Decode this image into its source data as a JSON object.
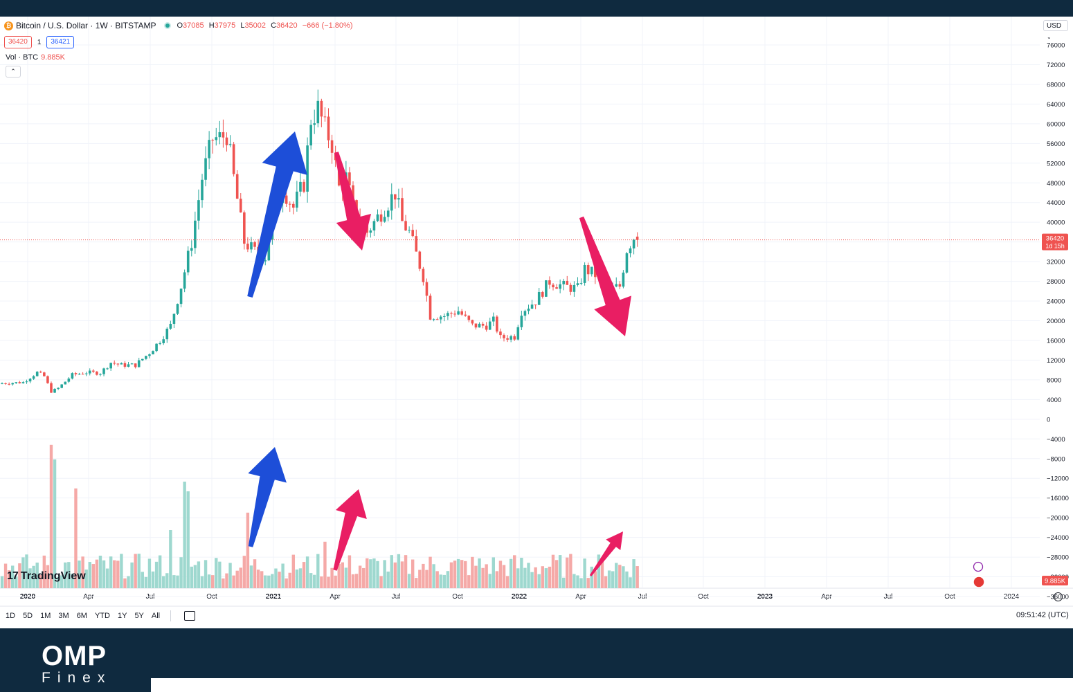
{
  "header": {
    "symbol_title": "Bitcoin / U.S. Dollar · 1W · BITSTAMP",
    "ohlc": {
      "o_label": "O",
      "o": "37085",
      "h_label": "H",
      "h": "37975",
      "l_label": "L",
      "l": "35002",
      "c_label": "C",
      "c": "36420",
      "change": "−666 (−1.80%)"
    },
    "sell_price": "36420",
    "spread": "1",
    "buy_price": "36421",
    "vol_label": "Vol · BTC",
    "vol_value": "9.885K",
    "collapse_icon": "chevron-up-icon",
    "currency": "USD"
  },
  "footer": {
    "ranges": [
      "1D",
      "5D",
      "1M",
      "3M",
      "6M",
      "YTD",
      "1Y",
      "5Y",
      "All"
    ],
    "clock": "09:51:42 (UTC)",
    "tradingview_logo": "TradingView"
  },
  "brand": {
    "name_top": "OMP",
    "name_bottom": "Finex"
  },
  "colors": {
    "up": "#26a69a",
    "down": "#ef5350",
    "up_vol": "#9ed8cf",
    "down_vol": "#f5a9a7",
    "arrow_blue": "#1d4ed8",
    "arrow_pink": "#e91e63",
    "price_badge": "#ef5350"
  },
  "chart_data": {
    "type": "candlestick",
    "title": "Bitcoin / U.S. Dollar · 1W · BITSTAMP",
    "y_axis_ticks": [
      76000,
      72000,
      68000,
      64000,
      60000,
      56000,
      52000,
      48000,
      44000,
      40000,
      36000,
      32000,
      28000,
      24000,
      20000,
      16000,
      12000,
      8000,
      4000,
      0,
      -4000,
      -8000,
      -12000,
      -16000,
      -20000,
      -24000,
      -28000,
      -32000,
      -36000
    ],
    "ylim": [
      -36000,
      76000
    ],
    "x_axis_labels": [
      "2020",
      "Apr",
      "Jul",
      "Oct",
      "2021",
      "Apr",
      "Jul",
      "Oct",
      "2022",
      "Apr",
      "Jul",
      "Oct",
      "2023",
      "Apr",
      "Jul",
      "Oct",
      "2024"
    ],
    "current_price_label": "36420",
    "current_price_countdown": "1d 15h",
    "current_volume_label": "9.885K",
    "price_anchors": [
      [
        0,
        7300
      ],
      [
        6,
        7500
      ],
      [
        10,
        9500
      ],
      [
        12,
        8700
      ],
      [
        14,
        5600
      ],
      [
        16,
        6300
      ],
      [
        20,
        9000
      ],
      [
        24,
        9500
      ],
      [
        28,
        9400
      ],
      [
        31,
        11500
      ],
      [
        34,
        11000
      ],
      [
        38,
        11000
      ],
      [
        42,
        13500
      ],
      [
        45,
        16000
      ],
      [
        48,
        19000
      ],
      [
        51,
        27000
      ],
      [
        54,
        36000
      ],
      [
        57,
        49000
      ],
      [
        60,
        57000
      ],
      [
        62,
        57000
      ],
      [
        64,
        58000
      ],
      [
        66,
        49000
      ],
      [
        69,
        36000
      ],
      [
        72,
        34000
      ],
      [
        75,
        33000
      ],
      [
        77,
        41000
      ],
      [
        80,
        47000
      ],
      [
        83,
        43000
      ],
      [
        86,
        48000
      ],
      [
        88,
        61000
      ],
      [
        90,
        63000
      ],
      [
        92,
        59000
      ],
      [
        94,
        56000
      ],
      [
        96,
        47000
      ],
      [
        98,
        49000
      ],
      [
        100,
        43000
      ],
      [
        104,
        38000
      ],
      [
        108,
        42000
      ],
      [
        112,
        46000
      ],
      [
        114,
        40000
      ],
      [
        116,
        38000
      ],
      [
        120,
        29000
      ],
      [
        122,
        21000
      ],
      [
        126,
        21000
      ],
      [
        130,
        22000
      ],
      [
        134,
        19000
      ],
      [
        138,
        19000
      ],
      [
        140,
        20000
      ],
      [
        142,
        16500
      ],
      [
        146,
        16800
      ],
      [
        148,
        22000
      ],
      [
        152,
        24000
      ],
      [
        156,
        28000
      ],
      [
        160,
        27000
      ],
      [
        164,
        26500
      ],
      [
        166,
        30500
      ],
      [
        170,
        29000
      ],
      [
        172,
        26000
      ],
      [
        176,
        27000
      ],
      [
        178,
        34500
      ],
      [
        180,
        37000
      ],
      [
        181,
        36420
      ]
    ],
    "volume_spikes": [
      [
        14,
        14.8
      ],
      [
        15,
        13.3
      ],
      [
        21,
        10.3
      ],
      [
        48,
        6
      ],
      [
        52,
        11
      ],
      [
        53,
        10
      ],
      [
        70,
        7.8
      ],
      [
        92,
        4.8
      ]
    ],
    "annotations": [
      "up-arrow-price",
      "down-arrow-price-1",
      "down-arrow-price-2",
      "up-arrow-volume",
      "up-arrow-volume-2",
      "up-arrow-volume-3"
    ]
  }
}
